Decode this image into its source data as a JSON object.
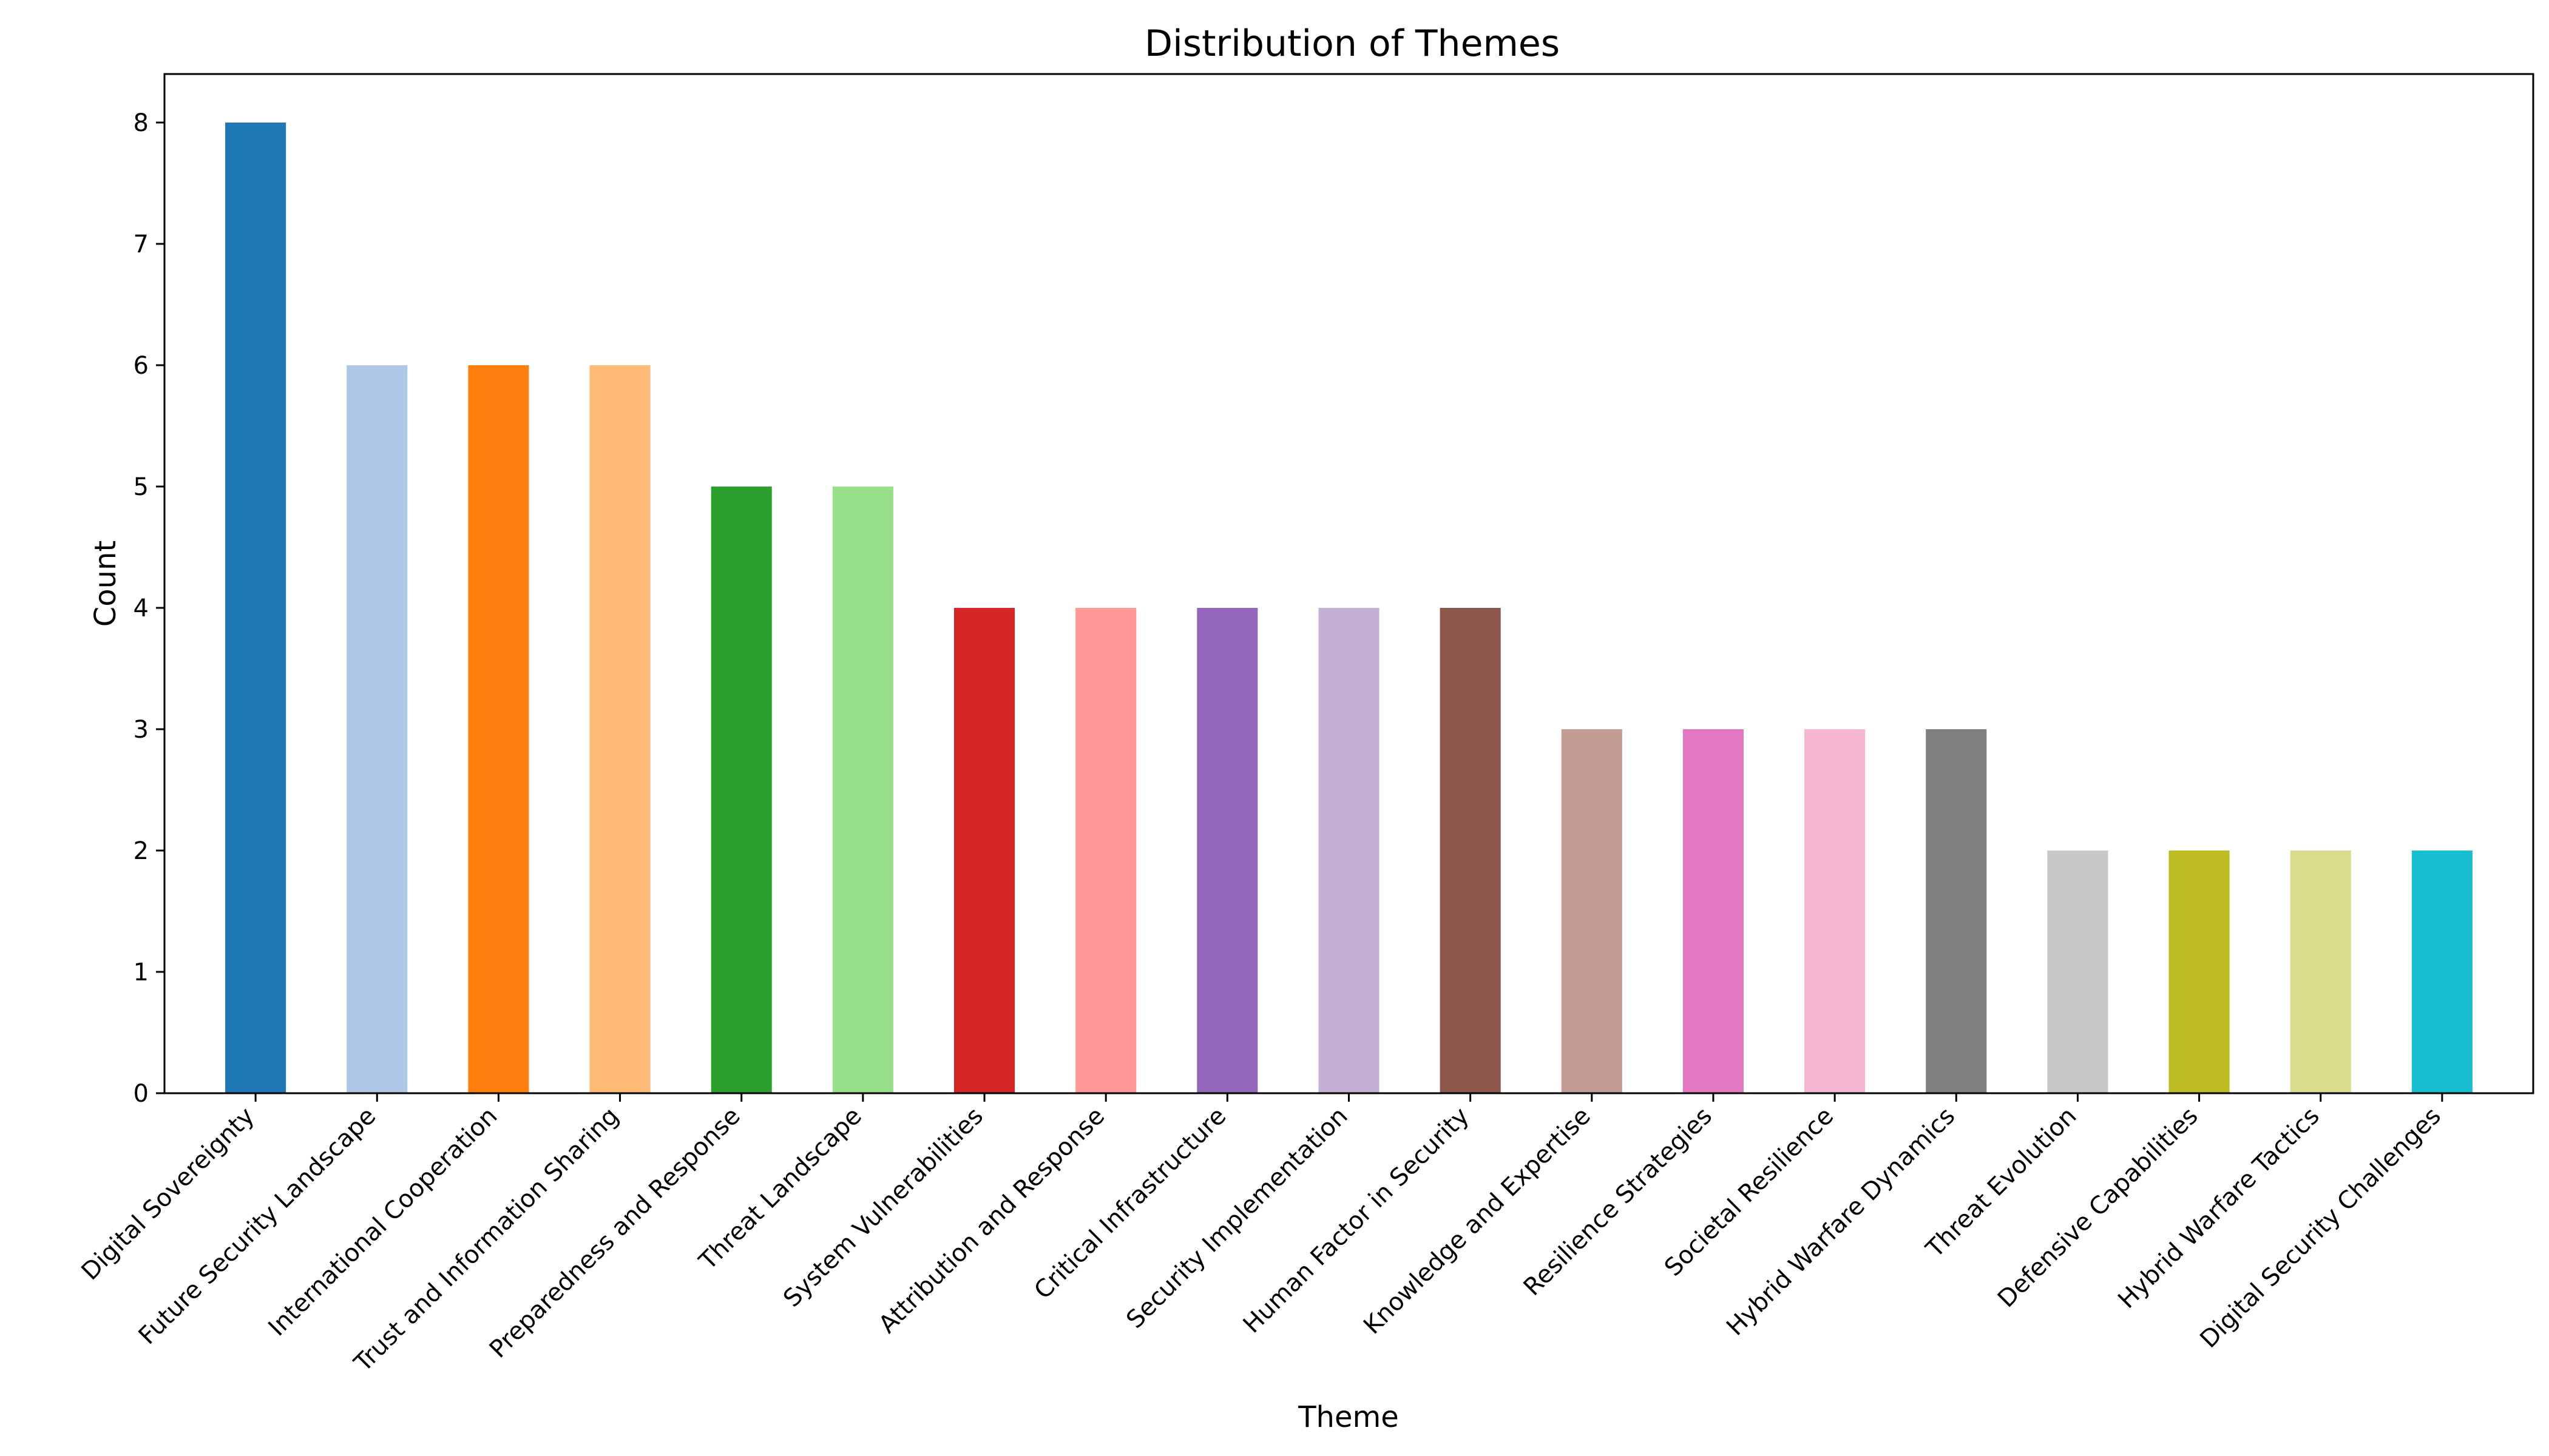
{
  "chart_data": {
    "type": "bar",
    "title": "Distribution of Themes",
    "xlabel": "Theme",
    "ylabel": "Count",
    "ylim": [
      0,
      8.4
    ],
    "y_ticks": [
      0,
      1,
      2,
      3,
      4,
      5,
      6,
      7,
      8
    ],
    "grid": false,
    "categories": [
      "Digital Sovereignty",
      "Future Security Landscape",
      "International Cooperation",
      "Trust and Information Sharing",
      "Preparedness and Response",
      "Threat Landscape",
      "System Vulnerabilities",
      "Attribution and Response",
      "Critical Infrastructure",
      "Security Implementation",
      "Human Factor in Security",
      "Knowledge and Expertise",
      "Resilience Strategies",
      "Societal Resilience",
      "Hybrid Warfare Dynamics",
      "Threat Evolution",
      "Defensive Capabilities",
      "Hybrid Warfare Tactics",
      "Digital Security Challenges"
    ],
    "values": [
      8,
      6,
      6,
      6,
      5,
      5,
      4,
      4,
      4,
      4,
      4,
      3,
      3,
      3,
      3,
      2,
      2,
      2,
      2
    ],
    "colors": [
      "#1f77b4",
      "#aec7e8",
      "#ff7f0e",
      "#ffbb78",
      "#2ca02c",
      "#98df8a",
      "#d62728",
      "#ff9896",
      "#9467bd",
      "#c5b0d5",
      "#8c564b",
      "#c49c94",
      "#e377c2",
      "#f7b6d2",
      "#7f7f7f",
      "#c7c7c7",
      "#bcbd22",
      "#dbdb8d",
      "#17becf"
    ]
  }
}
